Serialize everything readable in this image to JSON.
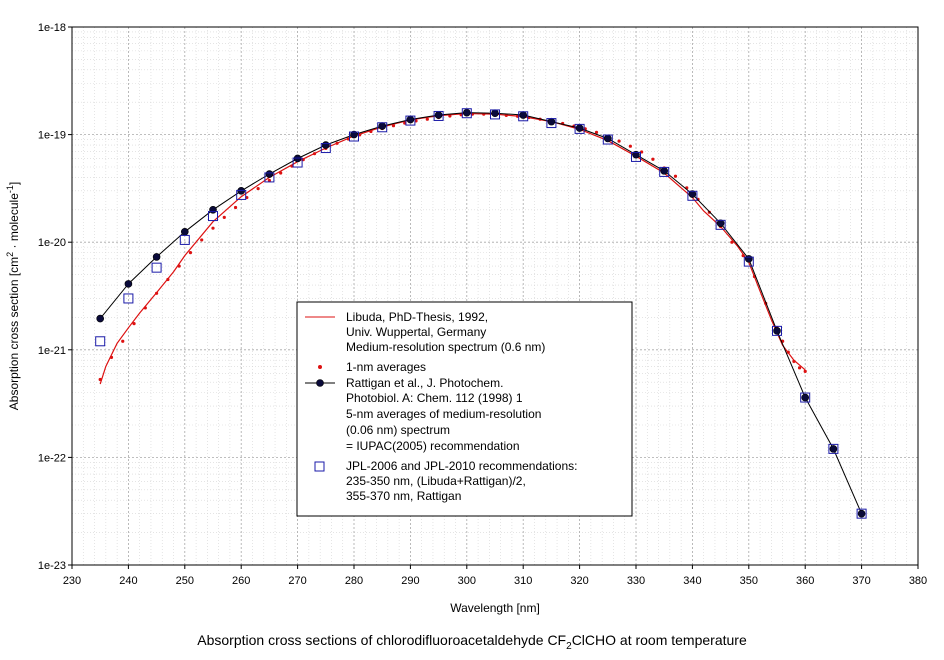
{
  "chart_data": {
    "type": "scatter",
    "title": "Absorption cross sections of chlorodifluoroacetaldehyde CF",
    "title_sub": "2",
    "title_end": "ClCHO at room temperature",
    "xlabel": "Wavelength [nm]",
    "ylabel_main": "Absorption cross section [cm",
    "ylabel_sup1": "2",
    "ylabel_mid": " · molecule",
    "ylabel_sup2": "-1",
    "ylabel_end": "]",
    "xlim": [
      230,
      380
    ],
    "ylim_log10": [
      -23,
      -18
    ],
    "x_ticks": [
      "230",
      "240",
      "250",
      "260",
      "270",
      "280",
      "290",
      "300",
      "310",
      "320",
      "330",
      "340",
      "350",
      "360",
      "370",
      "380"
    ],
    "y_ticks": [
      "1e-23",
      "1e-22",
      "1e-21",
      "1e-20",
      "1e-19",
      "1e-18"
    ],
    "grid": true,
    "legend_position": "lower-center",
    "series": [
      {
        "name": "Libuda, PhD-Thesis, 1992, Univ. Wuppertal, Germany Medium-resolution spectrum (0.6 nm)",
        "legend_lines": [
          "Libuda, PhD-Thesis, 1992,",
          "Univ. Wuppertal, Germany",
          "Medium-resolution spectrum (0.6 nm)"
        ],
        "style": "line",
        "color": "#dd1111",
        "x": [
          235,
          236,
          237,
          238,
          240,
          242,
          245,
          248,
          250,
          255,
          260,
          265,
          270,
          275,
          280,
          285,
          290,
          295,
          300,
          305,
          310,
          315,
          320,
          325,
          330,
          335,
          338,
          340,
          342,
          345,
          348,
          350,
          352,
          354,
          356,
          358,
          360
        ],
        "y": [
          4.8e-22,
          7e-22,
          9e-22,
          1.15e-21,
          1.6e-21,
          2.2e-21,
          3.4e-21,
          5.3e-21,
          7.5e-21,
          1.55e-20,
          2.65e-20,
          4e-20,
          5.6e-20,
          7.5e-20,
          9.7e-20,
          1.18e-19,
          1.37e-19,
          1.5e-19,
          1.57e-19,
          1.55e-19,
          1.47e-19,
          1.32e-19,
          1.12e-19,
          8.8e-20,
          6.3e-20,
          4.4e-20,
          3.2e-20,
          2.6e-20,
          1.95e-20,
          1.4e-20,
          9.2e-21,
          6.5e-21,
          3.5e-21,
          1.9e-21,
          1.1e-21,
          8e-22,
          6.5e-22
        ]
      },
      {
        "name": "1-nm averages",
        "legend_lines": [
          "1-nm averages"
        ],
        "style": "dots",
        "color": "#dd1111",
        "x": [
          235,
          237,
          239,
          241,
          243,
          245,
          247,
          249,
          251,
          253,
          255,
          257,
          259,
          261,
          263,
          265,
          267,
          269,
          271,
          273,
          275,
          277,
          279,
          281,
          283,
          285,
          287,
          289,
          291,
          293,
          295,
          297,
          299,
          301,
          303,
          305,
          307,
          309,
          311,
          313,
          315,
          317,
          319,
          321,
          323,
          325,
          327,
          329,
          331,
          333,
          335,
          337,
          339,
          341,
          343,
          345,
          347,
          349,
          351,
          353,
          355,
          356,
          357,
          358,
          359,
          360
        ],
        "y": [
          5.3e-22,
          8.5e-22,
          1.2e-21,
          1.75e-21,
          2.45e-21,
          3.35e-21,
          4.5e-21,
          6e-21,
          8e-21,
          1.05e-20,
          1.35e-20,
          1.7e-20,
          2.1e-20,
          2.6e-20,
          3.15e-20,
          3.75e-20,
          4.4e-20,
          5.1e-20,
          5.85e-20,
          6.65e-20,
          7.45e-20,
          8.3e-20,
          9.1e-20,
          9.95e-20,
          1.07e-19,
          1.14e-19,
          1.21e-19,
          1.28e-19,
          1.34e-19,
          1.39e-19,
          1.44e-19,
          1.49e-19,
          1.53e-19,
          1.55e-19,
          1.55e-19,
          1.54e-19,
          1.51e-19,
          1.48e-19,
          1.44e-19,
          1.39e-19,
          1.33e-19,
          1.27e-19,
          1.2e-19,
          1.13e-19,
          1.05e-19,
          9.6e-20,
          8.7e-20,
          7.8e-20,
          6.9e-20,
          5.9e-20,
          4.9e-20,
          4.1e-20,
          3.2e-20,
          2.5e-20,
          1.9e-20,
          1.4e-20,
          1e-20,
          7.5e-21,
          4.8e-21,
          2.7e-21,
          1.6e-21,
          1.2e-21,
          9.5e-22,
          7.8e-22,
          6.8e-22,
          6.3e-22
        ]
      },
      {
        "name": "Rattigan et al., J. Photochem. Photobiol. A: Chem. 112 (1998) 1 5-nm averages of medium-resolution (0.06 nm) spectrum = IUPAC(2005) recommendation",
        "legend_lines": [
          "Rattigan et al., J. Photochem.",
          "Photobiol. A: Chem. 112 (1998) 1",
          "5-nm averages of medium-resolution",
          "(0.06 nm) spectrum",
          "= IUPAC(2005) recommendation"
        ],
        "style": "line-markers",
        "color": "#000000",
        "x": [
          235,
          240,
          245,
          250,
          255,
          260,
          265,
          270,
          275,
          280,
          285,
          290,
          295,
          300,
          305,
          310,
          315,
          320,
          325,
          330,
          335,
          340,
          345,
          350,
          355,
          360,
          365,
          370
        ],
        "y": [
          1.95e-21,
          4.1e-21,
          7.3e-21,
          1.25e-20,
          2e-20,
          3e-20,
          4.3e-20,
          6e-20,
          8e-20,
          1e-19,
          1.2e-19,
          1.38e-19,
          1.52e-19,
          1.6e-19,
          1.58e-19,
          1.52e-19,
          1.32e-19,
          1.15e-19,
          9.2e-20,
          6.5e-20,
          4.6e-20,
          2.8e-20,
          1.5e-20,
          7e-21,
          1.5e-21,
          3.6e-22,
          1.2e-22,
          3e-23
        ]
      },
      {
        "name": "JPL-2006 and JPL-2010 recommendations: 235-350 nm, (Libuda+Rattigan)/2, 355-370 nm, Rattigan",
        "legend_lines": [
          "JPL-2006 and JPL-2010 recommendations:",
          "235-350 nm, (Libuda+Rattigan)/2,",
          "355-370 nm, Rattigan"
        ],
        "style": "open-squares",
        "color": "#1a1aa8",
        "x": [
          235,
          240,
          245,
          250,
          255,
          260,
          265,
          270,
          275,
          280,
          285,
          290,
          295,
          300,
          305,
          310,
          315,
          320,
          325,
          330,
          335,
          340,
          345,
          350,
          355,
          360,
          365,
          370
        ],
        "y": [
          1.2e-21,
          3e-21,
          5.8e-21,
          1.05e-20,
          1.75e-20,
          2.75e-20,
          4e-20,
          5.5e-20,
          7.5e-20,
          9.6e-20,
          1.17e-19,
          1.35e-19,
          1.49e-19,
          1.58e-19,
          1.54e-19,
          1.48e-19,
          1.28e-19,
          1.13e-19,
          9e-20,
          6.2e-20,
          4.5e-20,
          2.7e-20,
          1.45e-20,
          6.6e-21,
          1.5e-21,
          3.6e-22,
          1.2e-22,
          3e-23
        ]
      }
    ]
  }
}
